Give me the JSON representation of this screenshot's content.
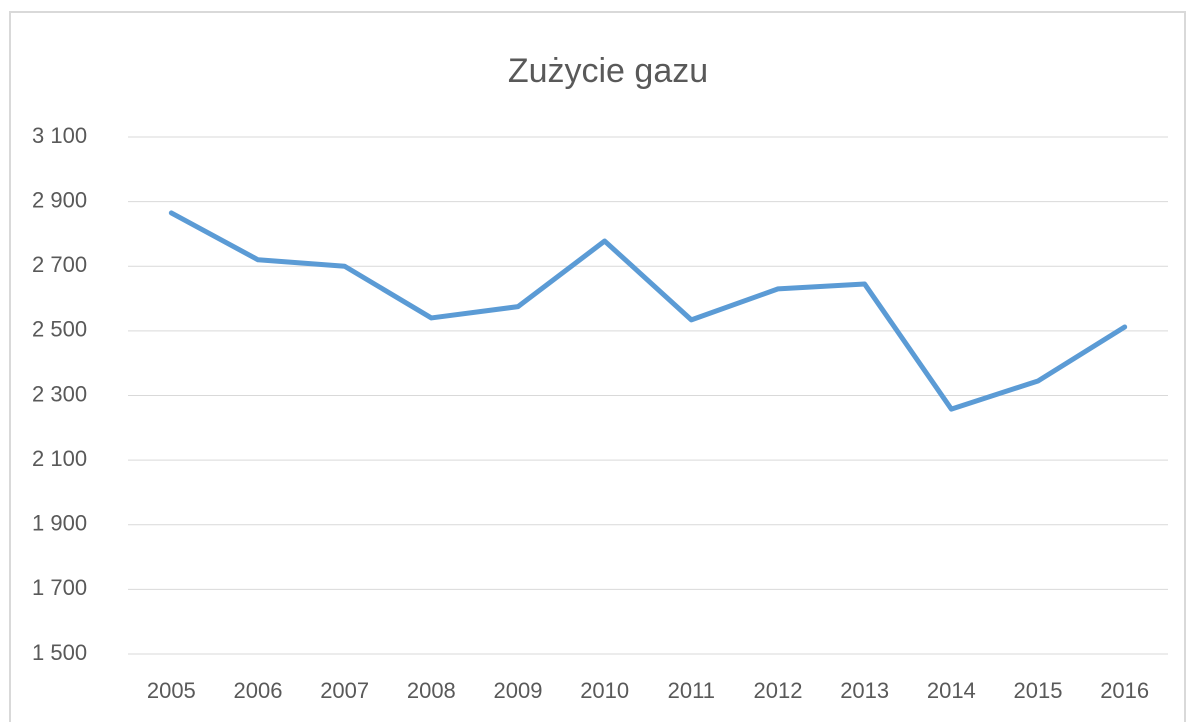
{
  "chart_data": {
    "type": "line",
    "title": "Zużycie gazu",
    "categories": [
      "2005",
      "2006",
      "2007",
      "2008",
      "2009",
      "2010",
      "2011",
      "2012",
      "2013",
      "2014",
      "2015",
      "2016"
    ],
    "series": [
      {
        "color": "#5b9bd5",
        "values": [
          2865,
          2720,
          2700,
          2540,
          2575,
          2778,
          2534,
          2630,
          2645,
          2258,
          2345,
          2512
        ]
      }
    ],
    "ylim": [
      1500,
      3100
    ],
    "yticks": [
      {
        "value": 1500,
        "label": "1 500"
      },
      {
        "value": 1700,
        "label": "1 700"
      },
      {
        "value": 1900,
        "label": "1 900"
      },
      {
        "value": 2100,
        "label": "2 100"
      },
      {
        "value": 2300,
        "label": "2 300"
      },
      {
        "value": 2500,
        "label": "2 500"
      },
      {
        "value": 2700,
        "label": "2 700"
      },
      {
        "value": 2900,
        "label": "2 900"
      },
      {
        "value": 3100,
        "label": "3 100"
      }
    ],
    "grid": true
  }
}
